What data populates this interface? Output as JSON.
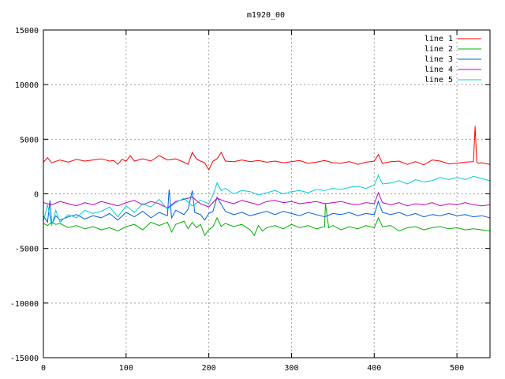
{
  "chart_data": {
    "type": "line",
    "title": "m1920_00",
    "xlabel": "",
    "ylabel": "",
    "xlim": [
      0,
      540
    ],
    "ylim": [
      -15000,
      15000
    ],
    "xticks": [
      0,
      100,
      200,
      300,
      400,
      500
    ],
    "yticks": [
      -15000,
      -10000,
      -5000,
      0,
      5000,
      10000,
      15000
    ],
    "grid": true,
    "legend_position": "top-right",
    "series": [
      {
        "name": "line 1",
        "color": "#ff0000",
        "x": [
          0,
          5,
          10,
          20,
          30,
          40,
          50,
          60,
          70,
          80,
          85,
          90,
          95,
          100,
          105,
          110,
          120,
          130,
          140,
          150,
          160,
          170,
          175,
          180,
          185,
          190,
          195,
          200,
          205,
          210,
          215,
          220,
          230,
          240,
          250,
          260,
          270,
          280,
          290,
          300,
          310,
          320,
          330,
          340,
          350,
          360,
          370,
          380,
          390,
          400,
          405,
          410,
          420,
          430,
          440,
          450,
          460,
          470,
          480,
          490,
          500,
          510,
          520,
          522,
          524,
          526,
          530,
          540
        ],
        "y": [
          2900,
          3300,
          2850,
          3100,
          2900,
          3150,
          3000,
          3100,
          3200,
          3000,
          3050,
          2700,
          3150,
          3000,
          3500,
          3000,
          3200,
          3000,
          3500,
          3100,
          3200,
          2900,
          2700,
          3800,
          3200,
          3000,
          2850,
          2200,
          3000,
          3200,
          3800,
          3000,
          2950,
          3100,
          2950,
          3050,
          2900,
          3000,
          2850,
          2950,
          3050,
          2800,
          2900,
          3050,
          2850,
          2800,
          2950,
          2700,
          2900,
          3000,
          3600,
          2800,
          2950,
          3000,
          2700,
          2950,
          2650,
          3100,
          3000,
          2750,
          2800,
          2900,
          2950,
          6200,
          2900,
          2800,
          2850,
          2700
        ]
      },
      {
        "name": "line 2",
        "color": "#00b000",
        "x": [
          0,
          5,
          10,
          15,
          20,
          30,
          40,
          50,
          60,
          70,
          80,
          90,
          100,
          110,
          120,
          130,
          140,
          150,
          155,
          160,
          170,
          175,
          180,
          185,
          190,
          195,
          200,
          205,
          210,
          215,
          220,
          230,
          240,
          250,
          255,
          260,
          265,
          270,
          280,
          290,
          300,
          310,
          320,
          330,
          340,
          341,
          345,
          350,
          360,
          370,
          380,
          390,
          400,
          405,
          410,
          420,
          430,
          440,
          450,
          460,
          470,
          480,
          490,
          500,
          510,
          520,
          530,
          540
        ],
        "y": [
          -2700,
          -2900,
          -2600,
          -2800,
          -2700,
          -3100,
          -2900,
          -3200,
          -3000,
          -3300,
          -3100,
          -3400,
          -3000,
          -2800,
          -3300,
          -2600,
          -2900,
          -2600,
          -3500,
          -2800,
          -2500,
          -3200,
          -2600,
          -3100,
          -2800,
          -3800,
          -3300,
          -3000,
          -2200,
          -3000,
          -2700,
          -3000,
          -2800,
          -3300,
          -3800,
          -2900,
          -3400,
          -3100,
          -2900,
          -3200,
          -2800,
          -3100,
          -2900,
          -3200,
          -3000,
          -900,
          -3100,
          -2900,
          -3300,
          -3000,
          -3200,
          -2900,
          -3100,
          -2200,
          -3000,
          -2900,
          -3400,
          -3100,
          -3000,
          -3300,
          -3100,
          -3000,
          -3200,
          -3100,
          -3300,
          -3200,
          -3300,
          -3400
        ]
      },
      {
        "name": "line 3",
        "color": "#0060e0",
        "x": [
          0,
          5,
          8,
          10,
          15,
          20,
          30,
          40,
          50,
          60,
          70,
          80,
          90,
          100,
          110,
          120,
          130,
          140,
          150,
          152,
          155,
          160,
          170,
          175,
          180,
          183,
          190,
          195,
          200,
          205,
          210,
          220,
          230,
          240,
          250,
          260,
          270,
          280,
          290,
          300,
          310,
          320,
          330,
          340,
          350,
          360,
          370,
          380,
          390,
          400,
          405,
          410,
          420,
          430,
          440,
          450,
          460,
          470,
          480,
          490,
          500,
          510,
          520,
          530,
          540
        ],
        "y": [
          -2000,
          -2600,
          -600,
          -2800,
          -2000,
          -2400,
          -2100,
          -1900,
          -2300,
          -2000,
          -2200,
          -1800,
          -2400,
          -1700,
          -2100,
          -1600,
          -2200,
          -1700,
          -2000,
          400,
          -2200,
          -1500,
          -1900,
          -1400,
          300,
          -1700,
          -1900,
          -2400,
          -1800,
          -1600,
          -300,
          -1600,
          -1900,
          -1700,
          -2000,
          -1800,
          -1600,
          -1900,
          -1600,
          -1800,
          -2000,
          -1700,
          -1900,
          -2100,
          -1800,
          -1900,
          -1700,
          -2000,
          -1800,
          -1900,
          -700,
          -1700,
          -1900,
          -1700,
          -2000,
          -1800,
          -2100,
          -1900,
          -2000,
          -1800,
          -2000,
          -1900,
          -2100,
          -2000,
          -2200
        ]
      },
      {
        "name": "line 4",
        "color": "#c000c0",
        "x": [
          0,
          10,
          20,
          30,
          40,
          50,
          60,
          70,
          80,
          90,
          100,
          110,
          120,
          130,
          140,
          150,
          160,
          170,
          180,
          190,
          200,
          210,
          220,
          230,
          240,
          250,
          260,
          270,
          280,
          290,
          300,
          310,
          320,
          330,
          340,
          350,
          360,
          370,
          380,
          390,
          400,
          405,
          410,
          420,
          430,
          440,
          450,
          460,
          470,
          480,
          490,
          500,
          510,
          520,
          530,
          540
        ],
        "y": [
          -800,
          -1000,
          -700,
          -900,
          -1100,
          -800,
          -1000,
          -700,
          -900,
          -1100,
          -800,
          -600,
          -1000,
          -700,
          -900,
          -1300,
          -700,
          -500,
          -300,
          -900,
          -1200,
          -400,
          -700,
          -900,
          -600,
          -800,
          -1000,
          -700,
          -600,
          -800,
          -700,
          -900,
          -800,
          -700,
          -900,
          -800,
          -700,
          -900,
          -1000,
          -800,
          -900,
          100,
          -800,
          -1000,
          -800,
          -1100,
          -900,
          -1000,
          -800,
          -1100,
          -900,
          -1000,
          -800,
          -1000,
          -1100,
          -1000
        ]
      },
      {
        "name": "line 5",
        "color": "#00d0d0",
        "x": [
          0,
          5,
          10,
          15,
          20,
          30,
          40,
          50,
          60,
          70,
          80,
          90,
          100,
          110,
          120,
          130,
          140,
          150,
          160,
          170,
          180,
          190,
          200,
          205,
          210,
          215,
          220,
          230,
          240,
          250,
          260,
          270,
          280,
          290,
          300,
          310,
          320,
          330,
          340,
          350,
          360,
          370,
          380,
          390,
          400,
          405,
          410,
          420,
          430,
          440,
          450,
          460,
          470,
          480,
          490,
          500,
          510,
          520,
          530,
          540
        ],
        "y": [
          -2500,
          -1000,
          -2900,
          -1500,
          -2600,
          -1900,
          -2200,
          -1500,
          -1800,
          -1600,
          -1200,
          -2100,
          -1100,
          -1700,
          -900,
          -1200,
          -500,
          -1400,
          -800,
          -400,
          -1100,
          -600,
          -900,
          -100,
          1000,
          300,
          500,
          0,
          300,
          200,
          -100,
          100,
          300,
          0,
          200,
          300,
          100,
          400,
          300,
          500,
          400,
          600,
          700,
          500,
          800,
          1700,
          900,
          1000,
          1200,
          900,
          1300,
          1100,
          1200,
          1500,
          1300,
          1500,
          1300,
          1600,
          1400,
          1200
        ]
      }
    ]
  }
}
